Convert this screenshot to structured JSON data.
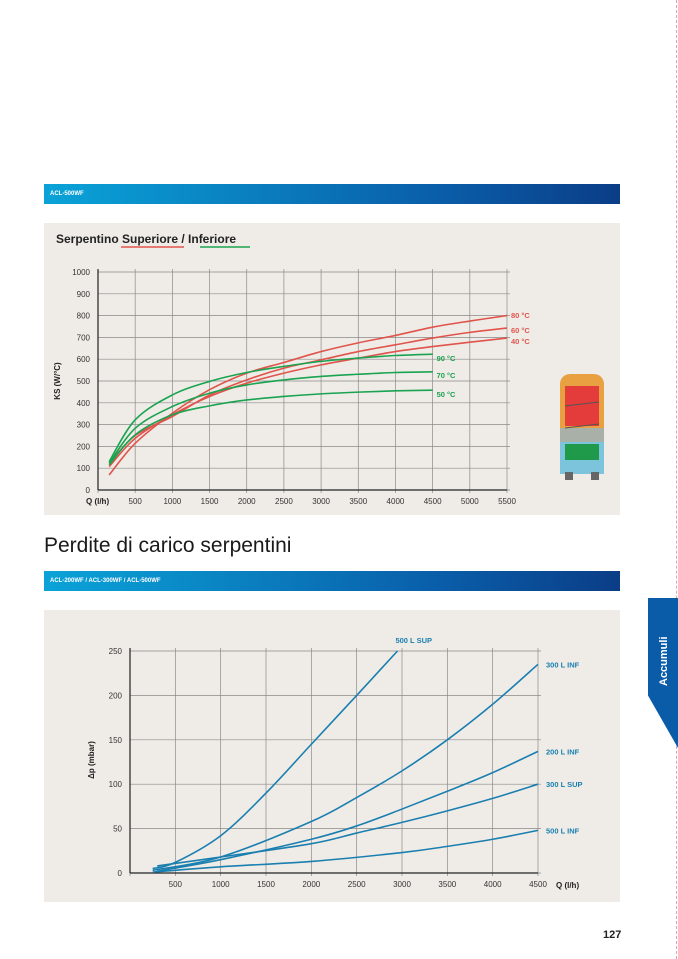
{
  "section1": {
    "bar_label": "ACL-500WF",
    "panel_title": "Serpentino Superiore / Inferiore",
    "legend_colors": {
      "superiore": "#e0544c",
      "inferiore": "#1aa350"
    }
  },
  "section2": {
    "heading": "Perdite di carico serpentini",
    "bar_label": "ACL-200WF / ACL-300WF / ACL-500WF"
  },
  "side_tab": "Accumuli",
  "page_number": "127",
  "chart_data": [
    {
      "type": "line",
      "title": "Serpentino Superiore / Inferiore",
      "xlabel": "Q (l/h)",
      "ylabel": "KS (W/°C)",
      "xlim": [
        0,
        5500
      ],
      "ylim": [
        0,
        1000
      ],
      "grid": true,
      "xticks": [
        500,
        1000,
        1500,
        2000,
        2500,
        3000,
        3500,
        4000,
        4500,
        5000,
        5500
      ],
      "yticks": [
        0,
        100,
        200,
        300,
        400,
        500,
        600,
        700,
        800,
        900,
        1000
      ],
      "series": [
        {
          "name": "80 °C",
          "color": "#e0544c",
          "x": [
            150,
            500,
            1000,
            1500,
            2000,
            2500,
            3000,
            3500,
            4000,
            4500,
            5000,
            5500
          ],
          "y": [
            69,
            214,
            352,
            460,
            536,
            585,
            635,
            675,
            709,
            747,
            775,
            800
          ]
        },
        {
          "name": "60 °C",
          "color": "#e0544c",
          "x": [
            150,
            500,
            1000,
            1500,
            2000,
            2500,
            3000,
            3500,
            4000,
            4500,
            5000,
            5500
          ],
          "y": [
            122,
            250,
            337,
            436,
            505,
            559,
            597,
            635,
            666,
            697,
            723,
            743
          ]
        },
        {
          "name": "40 °C",
          "color": "#e0544c",
          "x": [
            150,
            500,
            1000,
            1500,
            2000,
            2500,
            3000,
            3500,
            4000,
            4500,
            5000,
            5500
          ],
          "y": [
            107,
            237,
            345,
            429,
            490,
            536,
            574,
            605,
            635,
            658,
            678,
            697
          ]
        },
        {
          "name": "90 °C",
          "color": "#1aa350",
          "x": [
            150,
            500,
            1000,
            1500,
            2000,
            2500,
            3000,
            3500,
            4000,
            4500
          ],
          "y": [
            130,
            322,
            436,
            498,
            539,
            567,
            590,
            605,
            617,
            623
          ]
        },
        {
          "name": "70 °C",
          "color": "#1aa350",
          "x": [
            150,
            500,
            1000,
            1500,
            2000,
            2500,
            3000,
            3500,
            4000,
            4500
          ],
          "y": [
            122,
            283,
            383,
            444,
            482,
            505,
            521,
            531,
            539,
            542
          ]
        },
        {
          "name": "50 °C",
          "color": "#1aa350",
          "x": [
            150,
            500,
            1000,
            1500,
            2000,
            2500,
            3000,
            3500,
            4000,
            4500
          ],
          "y": [
            115,
            253,
            345,
            386,
            413,
            429,
            441,
            449,
            455,
            458
          ]
        }
      ]
    },
    {
      "type": "line",
      "xlabel": "Q (l/h)",
      "ylabel": "Δp (mbar)",
      "xlim": [
        0,
        4500
      ],
      "ylim": [
        0,
        250
      ],
      "grid": true,
      "xticks": [
        500,
        1000,
        1500,
        2000,
        2500,
        3000,
        3500,
        4000,
        4500
      ],
      "yticks": [
        0,
        50,
        100,
        150,
        200,
        250
      ],
      "series": [
        {
          "name": "500 L SUP",
          "color": "#1a7fb0",
          "x": [
            250,
            500,
            1000,
            1500,
            2000,
            2500,
            2950
          ],
          "y": [
            5,
            12,
            42,
            90,
            145,
            200,
            250
          ]
        },
        {
          "name": "300 L INF",
          "color": "#1a7fb0",
          "x": [
            250,
            1000,
            2000,
            2500,
            3000,
            3500,
            4000,
            4500
          ],
          "y": [
            3,
            18,
            58,
            85,
            115,
            150,
            190,
            235
          ]
        },
        {
          "name": "200 L INF",
          "color": "#1a7fb0",
          "x": [
            300,
            1000,
            2000,
            2500,
            3000,
            3500,
            4000,
            4500
          ],
          "y": [
            2,
            15,
            38,
            53,
            72,
            92,
            113,
            137
          ]
        },
        {
          "name": "300 L SUP",
          "color": "#1a7fb0",
          "x": [
            300,
            1000,
            2000,
            2500,
            3000,
            3500,
            4000,
            4500
          ],
          "y": [
            8,
            18,
            33,
            45,
            57,
            70,
            84,
            100
          ]
        },
        {
          "name": "500 L INF",
          "color": "#1a7fb0",
          "x": [
            250,
            1000,
            2000,
            3000,
            3500,
            4000,
            4500
          ],
          "y": [
            1,
            7,
            13,
            23,
            30,
            38,
            48
          ]
        }
      ]
    }
  ]
}
